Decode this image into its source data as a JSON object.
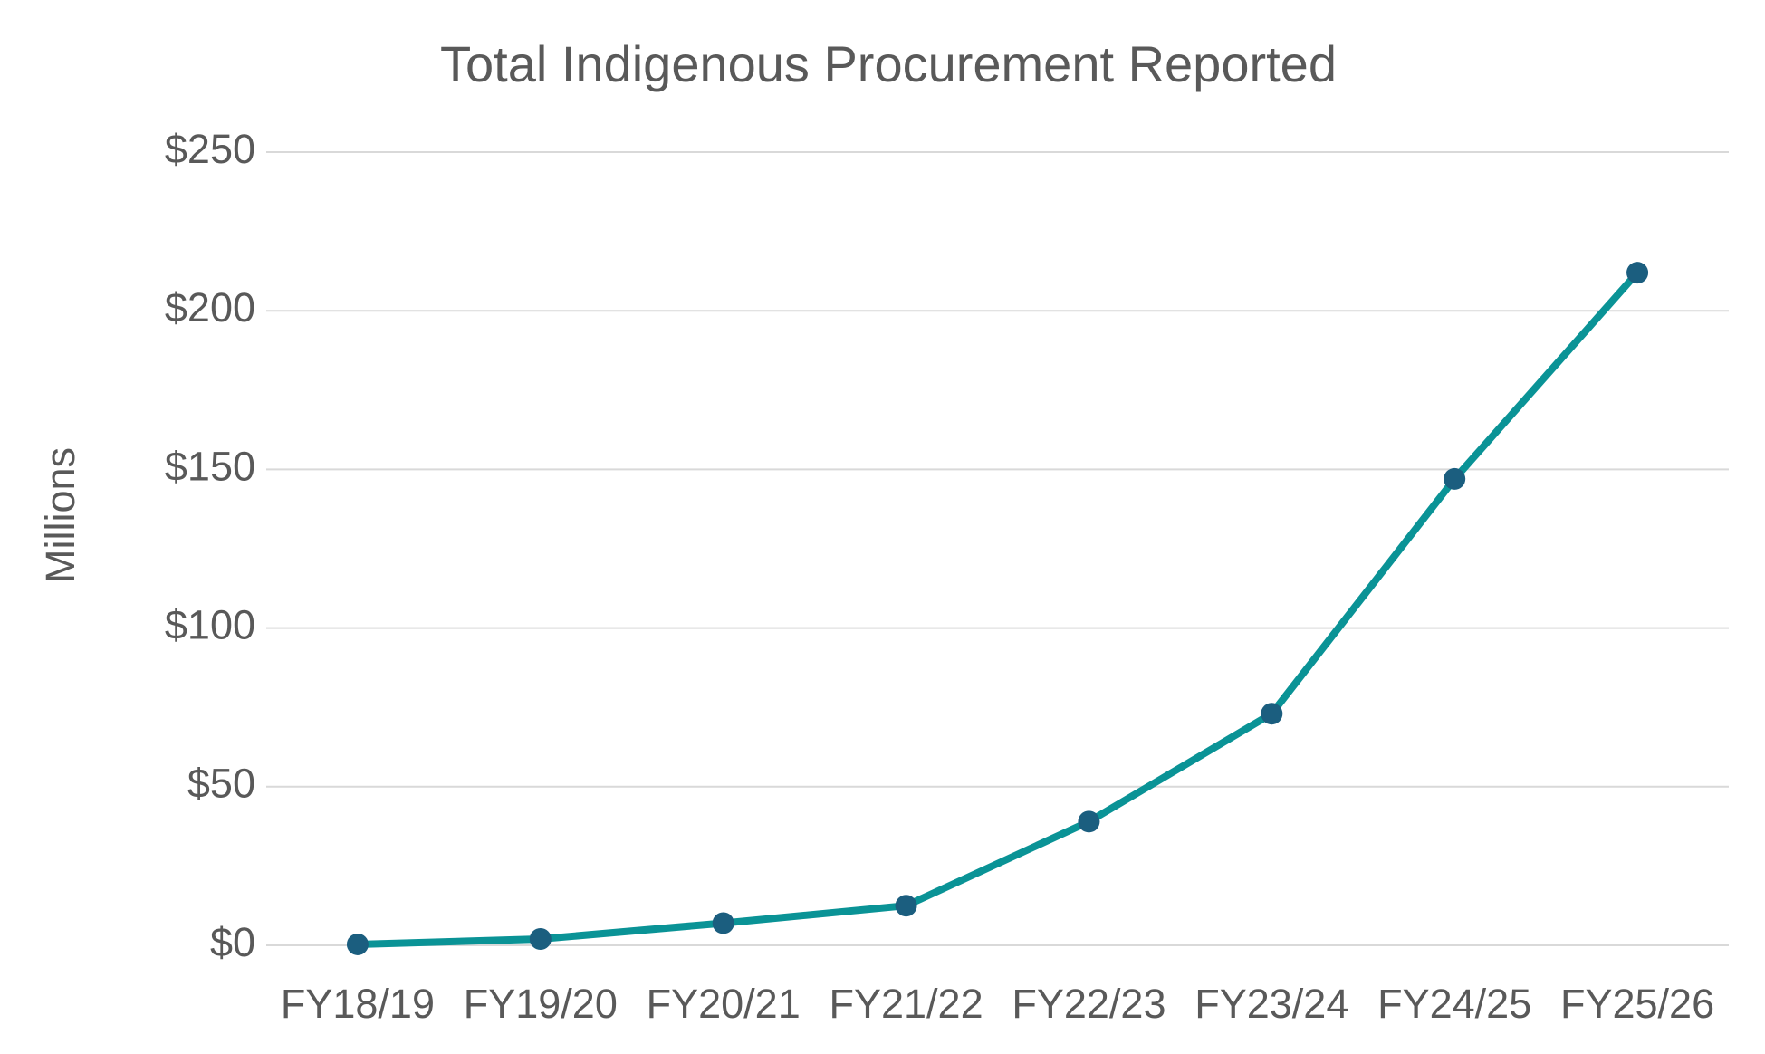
{
  "chart_data": {
    "type": "line",
    "title": "Total Indigenous Procurement Reported",
    "y_label": "Millions",
    "categories": [
      "FY18/19",
      "FY19/20",
      "FY20/21",
      "FY21/22",
      "FY22/23",
      "FY23/24",
      "FY24/25",
      "FY25/26"
    ],
    "values": [
      0.3,
      2,
      7,
      12.5,
      39,
      73,
      147,
      212
    ],
    "color": "#0a9396",
    "marker_color": "#1b5e7f",
    "ylim": [
      0,
      250
    ],
    "yticks": [
      {
        "value": 0,
        "label": "$0"
      },
      {
        "value": 50,
        "label": "$50"
      },
      {
        "value": 100,
        "label": "$100"
      },
      {
        "value": 150,
        "label": "$150"
      },
      {
        "value": 200,
        "label": "$200"
      },
      {
        "value": 250,
        "label": "$250"
      }
    ],
    "grid": true
  }
}
